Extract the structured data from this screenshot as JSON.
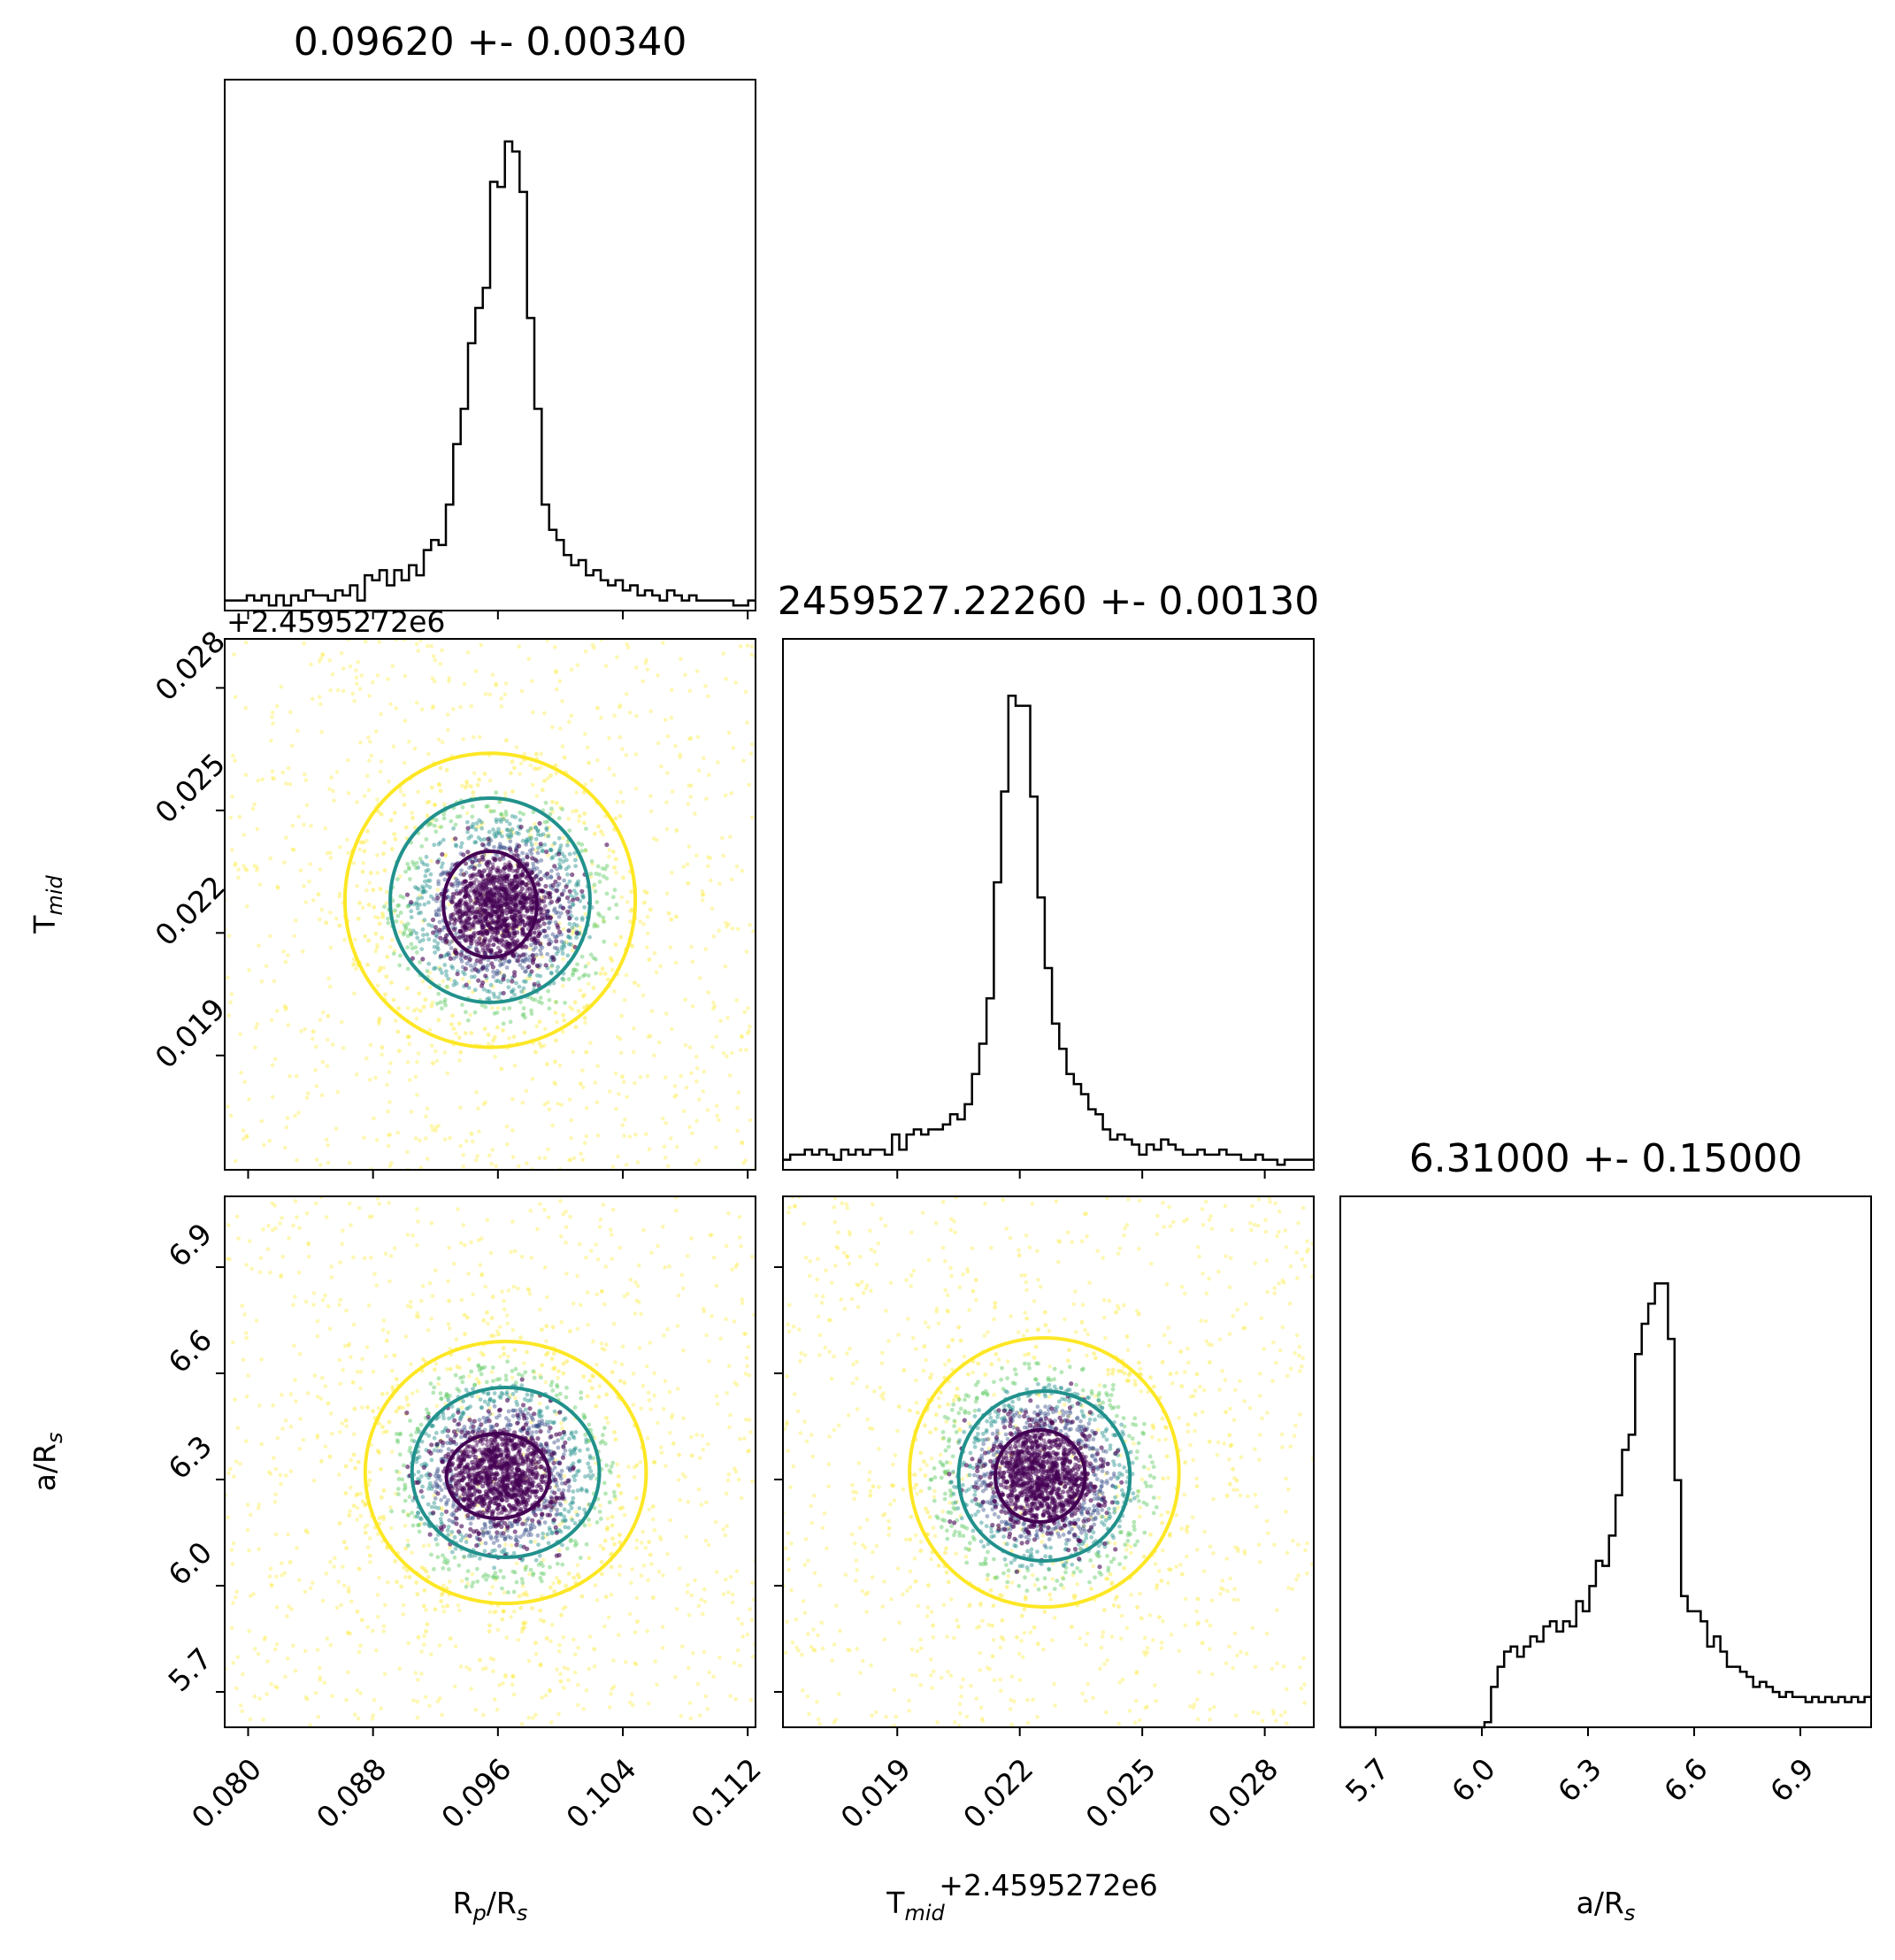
{
  "chart_data": {
    "type": "scatter",
    "kind": "corner",
    "parameters": [
      {
        "key": "rp",
        "label_main": "R",
        "label_sub": "p",
        "label_tail": "/R",
        "label_sub2": "s",
        "title": "0.09620 +- 0.00340",
        "mean": 0.0962,
        "sigma": 0.0034,
        "range": [
          0.0785,
          0.1125
        ],
        "ticks": [
          "0.080",
          "0.088",
          "0.096",
          "0.104",
          "0.112"
        ]
      },
      {
        "key": "tmid",
        "label_main": "T",
        "label_sub": "mid",
        "label_tail": "",
        "label_sub2": "",
        "title": "2459527.22260 +- 0.00130",
        "mean": 0.0226,
        "sigma": 0.0013,
        "offset": "+2.4595272e6",
        "range": [
          0.0162,
          0.0292
        ],
        "ticks": [
          "0.019",
          "0.022",
          "0.025",
          "0.028"
        ]
      },
      {
        "key": "ars",
        "label_main": "a/R",
        "label_sub": "s",
        "label_tail": "",
        "label_sub2": "",
        "title": "6.31000 +- 0.15000",
        "mean": 6.31,
        "sigma": 0.15,
        "range": [
          5.6,
          7.1
        ],
        "ticks": [
          "5.7",
          "6.0",
          "6.3",
          "6.6",
          "6.9"
        ]
      }
    ],
    "histograms": {
      "rp": [
        0.02,
        0.02,
        0.02,
        0.03,
        0.02,
        0.03,
        0.01,
        0.03,
        0.01,
        0.03,
        0.02,
        0.04,
        0.03,
        0.03,
        0.02,
        0.04,
        0.03,
        0.05,
        0.02,
        0.07,
        0.06,
        0.08,
        0.05,
        0.08,
        0.06,
        0.09,
        0.07,
        0.12,
        0.14,
        0.13,
        0.21,
        0.33,
        0.4,
        0.53,
        0.6,
        0.64,
        0.85,
        0.84,
        0.93,
        0.91,
        0.83,
        0.58,
        0.4,
        0.21,
        0.16,
        0.14,
        0.11,
        0.09,
        0.1,
        0.07,
        0.08,
        0.06,
        0.05,
        0.06,
        0.04,
        0.05,
        0.03,
        0.04,
        0.03,
        0.02,
        0.04,
        0.03,
        0.02,
        0.03,
        0.02,
        0.02,
        0.02,
        0.02,
        0.02,
        0.01,
        0.01,
        0.02
      ],
      "tmid": [
        0.02,
        0.03,
        0.03,
        0.04,
        0.03,
        0.04,
        0.03,
        0.02,
        0.04,
        0.03,
        0.04,
        0.03,
        0.04,
        0.04,
        0.03,
        0.07,
        0.04,
        0.07,
        0.08,
        0.07,
        0.08,
        0.08,
        0.09,
        0.11,
        0.1,
        0.13,
        0.19,
        0.25,
        0.34,
        0.57,
        0.75,
        0.94,
        0.92,
        0.92,
        0.74,
        0.54,
        0.4,
        0.29,
        0.24,
        0.19,
        0.17,
        0.15,
        0.12,
        0.11,
        0.08,
        0.06,
        0.07,
        0.06,
        0.05,
        0.03,
        0.05,
        0.04,
        0.06,
        0.05,
        0.04,
        0.03,
        0.03,
        0.04,
        0.03,
        0.03,
        0.04,
        0.03,
        0.03,
        0.02,
        0.02,
        0.03,
        0.02,
        0.02,
        0.01,
        0.02,
        0.02,
        0.02,
        0.02
      ],
      "ars": [
        0.0,
        0.0,
        0.0,
        0.0,
        0.0,
        0.0,
        0.0,
        0.0,
        0.0,
        0.0,
        0.0,
        0.0,
        0.0,
        0.0,
        0.0,
        0.0,
        0.0,
        0.0,
        0.0,
        0.0,
        0.0,
        0.0,
        0.01,
        0.08,
        0.12,
        0.15,
        0.16,
        0.14,
        0.16,
        0.18,
        0.17,
        0.2,
        0.21,
        0.19,
        0.21,
        0.2,
        0.25,
        0.23,
        0.28,
        0.33,
        0.32,
        0.38,
        0.46,
        0.55,
        0.58,
        0.74,
        0.8,
        0.84,
        0.88,
        0.88,
        0.77,
        0.49,
        0.26,
        0.23,
        0.23,
        0.21,
        0.16,
        0.18,
        0.15,
        0.12,
        0.12,
        0.11,
        0.1,
        0.08,
        0.09,
        0.08,
        0.07,
        0.06,
        0.07,
        0.06,
        0.06,
        0.05,
        0.06,
        0.05,
        0.06,
        0.05,
        0.06,
        0.05,
        0.06,
        0.05,
        0.06
      ]
    },
    "contours": {
      "rp_tmid": [
        {
          "level": "inner",
          "color": "#440154",
          "cx": 0.0955,
          "cy": 0.0227,
          "rx": 0.003,
          "ry": 0.0013
        },
        {
          "level": "mid",
          "color": "#21918c",
          "cx": 0.0955,
          "cy": 0.0228,
          "rx": 0.0064,
          "ry": 0.0025
        },
        {
          "level": "outer",
          "color": "#fde725",
          "cx": 0.0955,
          "cy": 0.0228,
          "rx": 0.0093,
          "ry": 0.0036
        }
      ],
      "rp_ars": [
        {
          "level": "inner",
          "color": "#440154",
          "cx": 0.096,
          "cy": 6.31,
          "rx": 0.0033,
          "ry": 0.12
        },
        {
          "level": "mid",
          "color": "#21918c",
          "cx": 0.0965,
          "cy": 6.32,
          "rx": 0.006,
          "ry": 0.24
        },
        {
          "level": "outer",
          "color": "#fde725",
          "cx": 0.0965,
          "cy": 6.32,
          "rx": 0.009,
          "ry": 0.37
        }
      ],
      "tmid_ars": [
        {
          "level": "inner",
          "color": "#440154",
          "cx": 0.0225,
          "cy": 6.31,
          "rx": 0.0011,
          "ry": 0.13
        },
        {
          "level": "mid",
          "color": "#21918c",
          "cx": 0.0226,
          "cy": 6.31,
          "rx": 0.0021,
          "ry": 0.24
        },
        {
          "level": "outer",
          "color": "#fde725",
          "cx": 0.0226,
          "cy": 6.32,
          "rx": 0.0033,
          "ry": 0.38
        }
      ]
    },
    "colormap": [
      "#440154",
      "#3b528b",
      "#21918c",
      "#5ec962",
      "#fde725"
    ],
    "grid": false
  }
}
